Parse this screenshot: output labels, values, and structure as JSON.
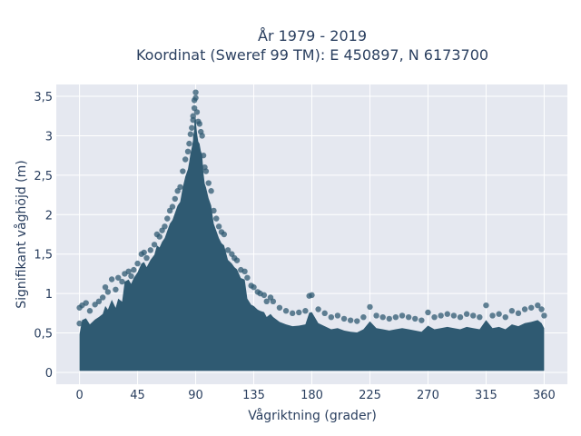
{
  "chart_data": {
    "type": "scatter",
    "title_lines": [
      "År 1979 - 2019",
      "Koordinat (Sweref 99 TM): E 450897, N 6173700"
    ],
    "xlabel": "Vågriktning (grader)",
    "ylabel": "Signifikant våghöjd (m)",
    "xlim": [
      -18,
      378
    ],
    "ylim": [
      -0.15,
      3.65
    ],
    "x_ticks": [
      0,
      45,
      90,
      135,
      180,
      225,
      270,
      315,
      360
    ],
    "x_tick_labels": [
      "0",
      "45",
      "90",
      "135",
      "180",
      "225",
      "270",
      "315",
      "360"
    ],
    "y_ticks": [
      0,
      0.5,
      1,
      1.5,
      2,
      2.5,
      3,
      3.5
    ],
    "y_tick_labels": [
      "0",
      "0,5",
      "1",
      "1,5",
      "2",
      "2,5",
      "3",
      "3,5"
    ],
    "grid": true,
    "legend": "none",
    "colors": {
      "marker": "#2f5a72",
      "plot_bg": "#e5e8f0",
      "text": "#2a3f5f"
    },
    "series": [
      {
        "x": [
          0,
          0,
          2,
          5,
          8,
          12,
          15,
          18,
          20,
          22,
          25,
          28,
          30,
          33,
          35,
          38,
          40,
          42,
          45,
          48,
          50,
          52,
          55,
          58,
          60,
          62,
          64,
          66,
          68,
          70,
          72,
          74,
          76,
          78,
          80,
          82,
          84,
          85,
          86,
          87,
          88,
          88,
          89,
          89,
          90,
          90,
          91,
          92,
          93,
          94,
          95,
          96,
          97,
          98,
          100,
          102,
          104,
          106,
          108,
          110,
          112,
          115,
          118,
          120,
          122,
          125,
          128,
          130,
          133,
          135,
          138,
          140,
          143,
          145,
          148,
          150,
          155,
          160,
          165,
          170,
          175,
          178,
          180,
          185,
          190,
          195,
          200,
          205,
          210,
          215,
          220,
          225,
          230,
          235,
          240,
          245,
          250,
          255,
          260,
          265,
          270,
          275,
          280,
          285,
          290,
          295,
          300,
          305,
          310,
          315,
          320,
          325,
          330,
          335,
          340,
          345,
          350,
          355,
          358,
          360
        ],
        "y": [
          0.82,
          0.62,
          0.85,
          0.88,
          0.78,
          0.86,
          0.9,
          0.95,
          1.08,
          1.02,
          1.18,
          1.05,
          1.2,
          1.15,
          1.25,
          1.28,
          1.22,
          1.3,
          1.38,
          1.5,
          1.52,
          1.45,
          1.55,
          1.62,
          1.75,
          1.72,
          1.8,
          1.85,
          1.95,
          2.05,
          2.1,
          2.2,
          2.3,
          2.35,
          2.55,
          2.7,
          2.8,
          2.9,
          3.02,
          3.1,
          3.2,
          3.25,
          3.35,
          3.45,
          3.55,
          3.48,
          3.3,
          3.18,
          3.15,
          3.05,
          3.0,
          2.75,
          2.6,
          2.55,
          2.4,
          2.3,
          2.05,
          1.95,
          1.85,
          1.78,
          1.75,
          1.55,
          1.5,
          1.45,
          1.42,
          1.3,
          1.28,
          1.2,
          1.1,
          1.08,
          1.02,
          1.0,
          0.98,
          0.9,
          0.95,
          0.9,
          0.82,
          0.78,
          0.75,
          0.76,
          0.78,
          0.97,
          0.98,
          0.8,
          0.75,
          0.7,
          0.72,
          0.68,
          0.66,
          0.65,
          0.7,
          0.83,
          0.72,
          0.7,
          0.68,
          0.7,
          0.72,
          0.7,
          0.68,
          0.66,
          0.76,
          0.7,
          0.72,
          0.74,
          0.72,
          0.7,
          0.74,
          0.72,
          0.7,
          0.85,
          0.72,
          0.74,
          0.7,
          0.78,
          0.75,
          0.8,
          0.82,
          0.85,
          0.8,
          0.72
        ]
      }
    ]
  }
}
